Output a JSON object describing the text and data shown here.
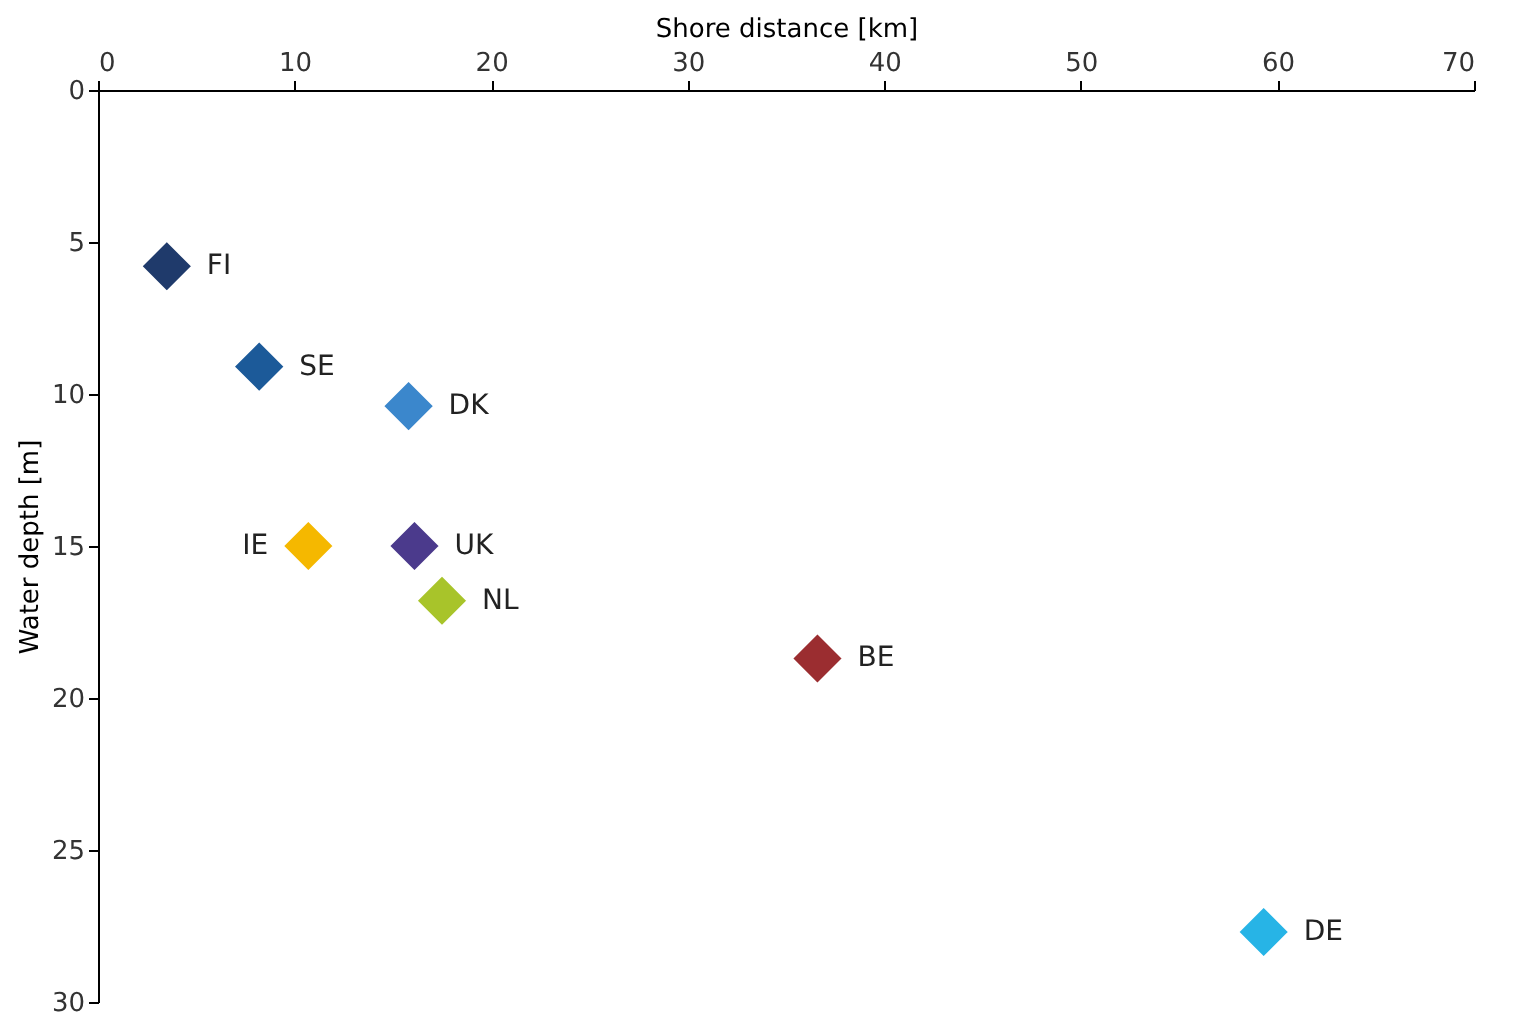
{
  "chart_data": {
    "type": "scatter",
    "xlabel": "Shore distance [km]",
    "ylabel": "Water depth [m]",
    "xlim": [
      0,
      70
    ],
    "xticks": [
      0,
      10,
      20,
      30,
      40,
      50,
      60,
      70
    ],
    "ylim": [
      30,
      0
    ],
    "yticks": [
      0,
      5,
      10,
      15,
      20,
      25,
      30
    ],
    "marker": "diamond",
    "grid": false,
    "series": [
      {
        "name": "FI",
        "color": "#1f3a6b",
        "x": [
          3.5
        ],
        "values": [
          5.8
        ]
      },
      {
        "name": "SE",
        "color": "#1c5a99",
        "x": [
          8.2
        ],
        "values": [
          9.1
        ]
      },
      {
        "name": "DK",
        "color": "#3b87cc",
        "x": [
          15.8
        ],
        "values": [
          10.4
        ]
      },
      {
        "name": "IE",
        "color": "#f5b800",
        "x": [
          10.7
        ],
        "values": [
          15.0
        ]
      },
      {
        "name": "UK",
        "color": "#4b3a8c",
        "x": [
          16.1
        ],
        "values": [
          15.0
        ]
      },
      {
        "name": "NL",
        "color": "#a8c42a",
        "x": [
          17.5
        ],
        "values": [
          16.8
        ]
      },
      {
        "name": "BE",
        "color": "#9b2d30",
        "x": [
          36.6
        ],
        "values": [
          18.7
        ]
      },
      {
        "name": "DE",
        "color": "#27b4e6",
        "x": [
          59.3
        ],
        "values": [
          27.7
        ]
      }
    ]
  }
}
